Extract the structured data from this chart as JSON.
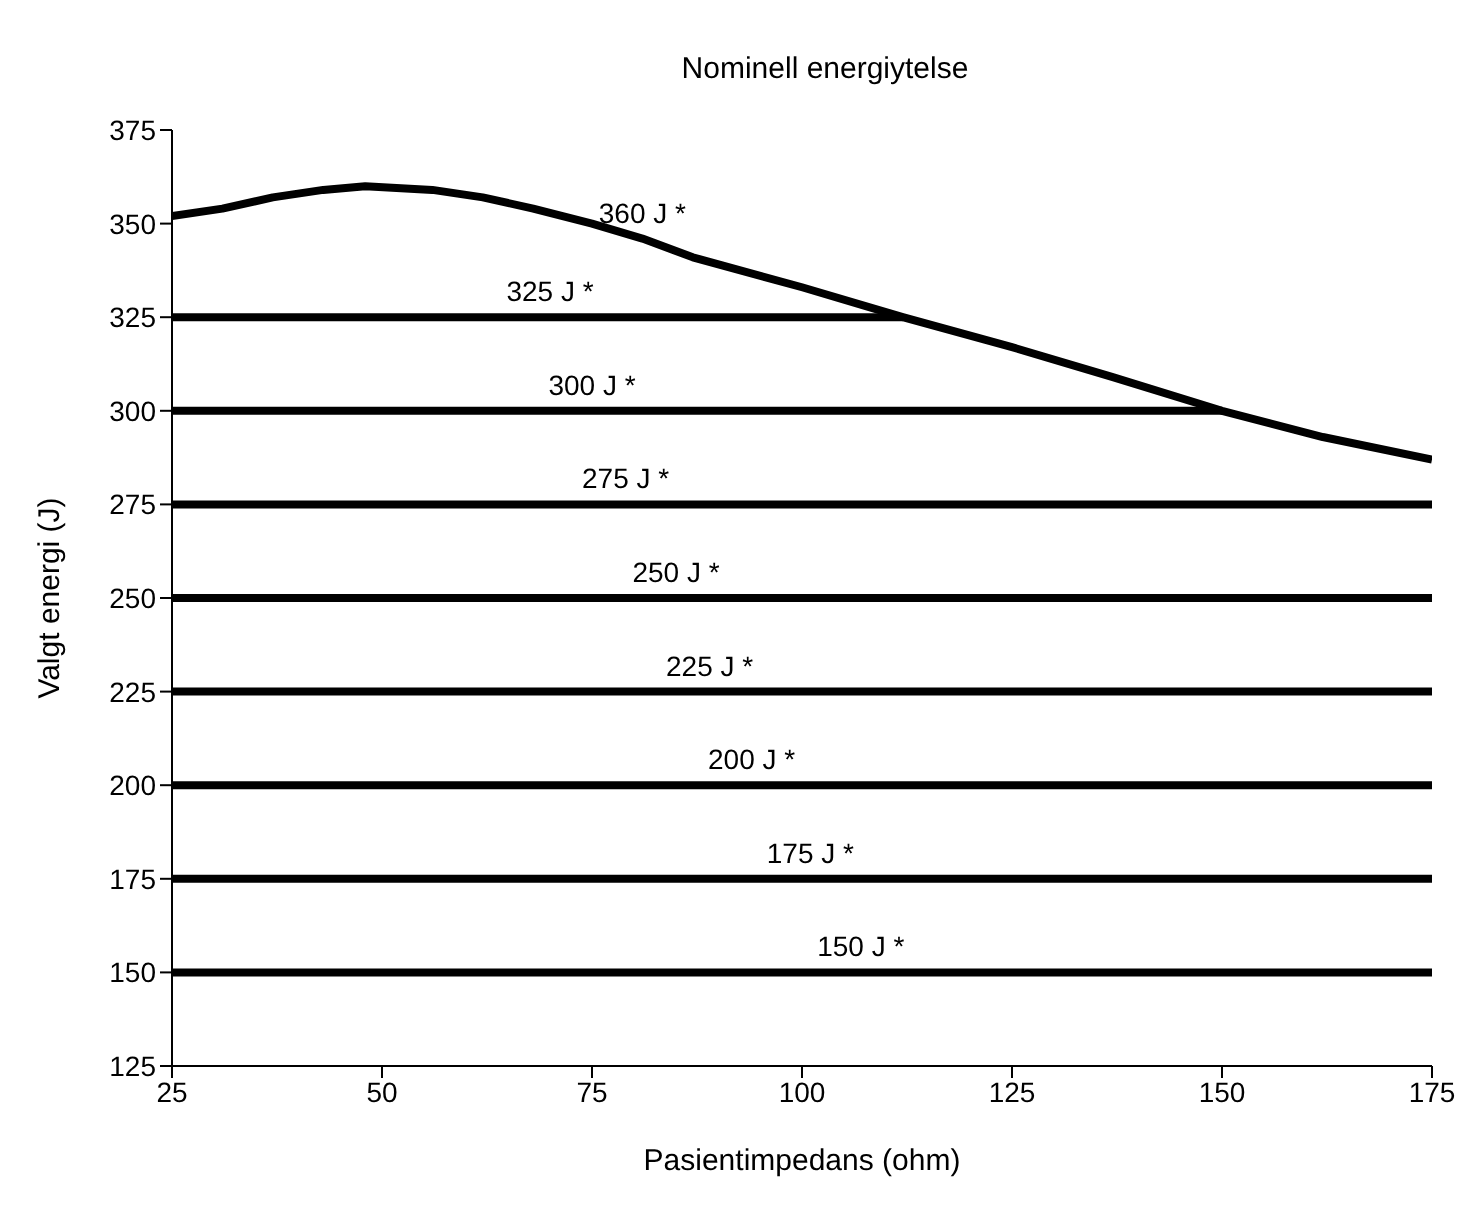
{
  "chart_data": {
    "type": "line",
    "title": "Nominell energiytelse",
    "xlabel": "Pasientimpedans (ohm)",
    "ylabel": "Valgt energi (J)",
    "xlim": [
      25,
      175
    ],
    "xticks": [
      25,
      50,
      75,
      100,
      125,
      150,
      175
    ],
    "ylim": [
      125,
      375
    ],
    "yticks": [
      125,
      150,
      175,
      200,
      225,
      250,
      275,
      300,
      325,
      350,
      375
    ],
    "grid": false,
    "legend": false,
    "marker": "none",
    "line_style": "solid",
    "series": [
      {
        "color": "#000000",
        "x": [
          25,
          31,
          37,
          43,
          48,
          56,
          62,
          68,
          75,
          81,
          87,
          100,
          112,
          125,
          137,
          150,
          162,
          175
        ],
        "values": [
          352,
          354,
          357,
          359,
          360,
          359,
          357,
          354,
          350,
          346,
          341,
          333,
          325,
          317,
          309,
          300,
          293,
          287
        ]
      },
      {
        "color": "#000000",
        "x": [
          25,
          112
        ],
        "values": [
          325,
          325
        ]
      },
      {
        "color": "#000000",
        "x": [
          25,
          150
        ],
        "values": [
          300,
          300
        ]
      },
      {
        "color": "#000000",
        "x": [
          25,
          175
        ],
        "values": [
          275,
          275
        ]
      },
      {
        "color": "#000000",
        "x": [
          25,
          175
        ],
        "values": [
          250,
          250
        ]
      },
      {
        "color": "#000000",
        "x": [
          25,
          175
        ],
        "values": [
          225,
          225
        ]
      },
      {
        "color": "#000000",
        "x": [
          25,
          175
        ],
        "values": [
          200,
          200
        ]
      },
      {
        "color": "#000000",
        "x": [
          25,
          175
        ],
        "values": [
          175,
          175
        ]
      },
      {
        "color": "#000000",
        "x": [
          25,
          175
        ],
        "values": [
          150,
          150
        ]
      }
    ],
    "annotations": [
      {
        "text": "360 J *",
        "x": 81,
        "y": 346
      },
      {
        "text": "325 J *",
        "x": 70,
        "y": 325
      },
      {
        "text": "300 J *",
        "x": 75,
        "y": 300
      },
      {
        "text": "275 J *",
        "x": 79,
        "y": 275
      },
      {
        "text": "250 J *",
        "x": 85,
        "y": 250
      },
      {
        "text": "225 J *",
        "x": 89,
        "y": 225
      },
      {
        "text": "200 J *",
        "x": 94,
        "y": 200
      },
      {
        "text": "175 J *",
        "x": 101,
        "y": 175
      },
      {
        "text": "150 J *",
        "x": 107,
        "y": 150
      }
    ]
  }
}
